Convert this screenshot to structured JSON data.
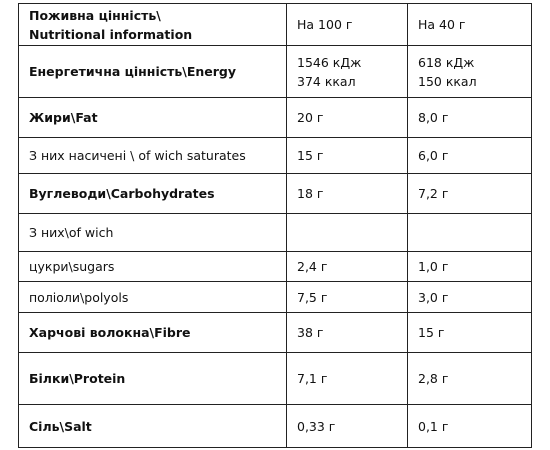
{
  "table": {
    "header": [
      [
        "Поживна цінність\\",
        "Nutritional information"
      ],
      [
        "На 100 г"
      ],
      [
        "На 40 г"
      ]
    ],
    "rows": [
      {
        "cells": [
          [
            "Енергетична цінність\\Energy"
          ],
          [
            "1546 кДж",
            "374 ккал"
          ],
          [
            "618 кДж",
            "150 ккал"
          ]
        ],
        "bold": true
      },
      {
        "cells": [
          [
            "Жири\\Fat"
          ],
          [
            "20 г"
          ],
          [
            "8,0 г"
          ]
        ],
        "bold": true
      },
      {
        "cells": [
          [
            "З них насичені \\ of wich saturates"
          ],
          [
            "15 г"
          ],
          [
            "6,0 г"
          ]
        ],
        "bold": false
      },
      {
        "cells": [
          [
            "Вуглеводи\\Carbohydrates"
          ],
          [
            "18 г"
          ],
          [
            "7,2 г"
          ]
        ],
        "bold": true
      },
      {
        "cells": [
          [
            "З них\\of wich"
          ],
          [],
          []
        ],
        "bold": false
      },
      {
        "cells": [
          [
            "цукри\\sugars"
          ],
          [
            "2,4 г"
          ],
          [
            "1,0 г"
          ]
        ],
        "bold": false
      },
      {
        "cells": [
          [
            "поліоли\\polyols"
          ],
          [
            "7,5 г"
          ],
          [
            "3,0 г"
          ]
        ],
        "bold": false
      },
      {
        "cells": [
          [
            "Харчові волокна\\Fibre"
          ],
          [
            "38 г"
          ],
          [
            "15 г"
          ]
        ],
        "bold": true
      },
      {
        "cells": [
          [
            "Білки\\Protein"
          ],
          [
            "7,1 г"
          ],
          [
            "2,8 г"
          ]
        ],
        "bold": true
      },
      {
        "cells": [
          [
            "Сіль\\Salt"
          ],
          [
            "0,33 г"
          ],
          [
            "0,1 г"
          ]
        ],
        "bold": true
      }
    ]
  }
}
